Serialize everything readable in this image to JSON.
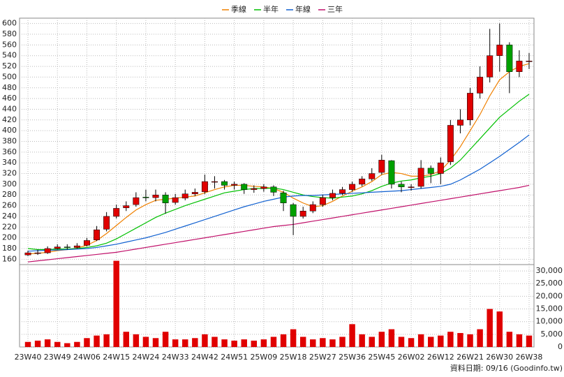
{
  "chart_data": {
    "type": "candlestick",
    "categories": [
      "23W40",
      null,
      null,
      "23W49",
      null,
      null,
      "24W06",
      null,
      null,
      "24W15",
      null,
      null,
      "24W24",
      null,
      null,
      "24W33",
      null,
      null,
      "24W42",
      null,
      null,
      "24W51",
      null,
      null,
      "25W09",
      null,
      null,
      "25W18",
      null,
      null,
      "25W27",
      null,
      null,
      "25W36",
      null,
      null,
      "25W45",
      null,
      null,
      "26W02",
      null,
      null,
      "26W12",
      null,
      null,
      "26W21",
      null,
      null,
      "26W30",
      null,
      null,
      "26W38"
    ],
    "open": [
      168,
      172,
      172,
      180,
      183,
      182,
      186,
      196,
      216,
      240,
      256,
      262,
      276,
      275,
      280,
      266,
      274,
      282,
      286,
      304,
      305,
      298,
      300,
      290,
      292,
      295,
      284,
      262,
      240,
      250,
      262,
      275,
      283,
      290,
      300,
      310,
      322,
      344,
      300,
      294,
      296,
      330,
      320,
      342,
      410,
      420,
      470,
      500,
      540,
      560,
      510,
      530
    ],
    "high": [
      176,
      178,
      184,
      188,
      188,
      190,
      200,
      222,
      248,
      262,
      268,
      285,
      290,
      290,
      285,
      282,
      290,
      292,
      318,
      315,
      308,
      305,
      302,
      298,
      300,
      298,
      288,
      265,
      258,
      268,
      280,
      290,
      295,
      305,
      315,
      330,
      355,
      345,
      305,
      300,
      345,
      335,
      350,
      420,
      440,
      480,
      520,
      590,
      600,
      565,
      550,
      545
    ],
    "low": [
      166,
      168,
      170,
      178,
      178,
      180,
      184,
      194,
      212,
      236,
      250,
      258,
      268,
      268,
      245,
      262,
      270,
      278,
      282,
      292,
      290,
      290,
      282,
      284,
      286,
      278,
      250,
      205,
      236,
      246,
      258,
      270,
      280,
      286,
      296,
      306,
      318,
      292,
      285,
      288,
      292,
      302,
      300,
      336,
      395,
      410,
      460,
      490,
      510,
      470,
      500,
      515
    ],
    "close": [
      172,
      172,
      180,
      183,
      182,
      185,
      195,
      215,
      240,
      255,
      260,
      275,
      275,
      280,
      265,
      275,
      282,
      285,
      305,
      305,
      298,
      300,
      290,
      292,
      295,
      285,
      265,
      240,
      250,
      262,
      275,
      283,
      290,
      300,
      310,
      320,
      345,
      300,
      295,
      295,
      330,
      320,
      340,
      410,
      420,
      470,
      500,
      540,
      560,
      510,
      530,
      530
    ],
    "up_color": "#e00000",
    "down_color": "#00a000",
    "ma": [
      {
        "name": "季線",
        "color": "#f08000",
        "values": [
          170,
          171,
          173,
          176,
          178,
          181,
          186,
          195,
          208,
          223,
          238,
          252,
          262,
          270,
          272,
          274,
          276,
          278,
          284,
          290,
          295,
          298,
          298,
          296,
          295,
          292,
          285,
          274,
          265,
          258,
          260,
          268,
          278,
          287,
          295,
          305,
          318,
          322,
          320,
          315,
          315,
          318,
          325,
          345,
          370,
          400,
          430,
          465,
          495,
          510,
          520,
          525
        ]
      },
      {
        "name": "半年",
        "color": "#00c000",
        "values": [
          180,
          178,
          178,
          179,
          179,
          180,
          182,
          185,
          190,
          198,
          208,
          218,
          228,
          238,
          246,
          253,
          260,
          266,
          272,
          278,
          284,
          287,
          290,
          292,
          292,
          293,
          290,
          285,
          280,
          277,
          275,
          274,
          276,
          278,
          282,
          288,
          296,
          302,
          306,
          308,
          312,
          315,
          320,
          330,
          345,
          365,
          385,
          405,
          425,
          440,
          455,
          468
        ]
      },
      {
        "name": "年線",
        "color": "#1060d0",
        "values": [
          175,
          176,
          177,
          177,
          178,
          179,
          180,
          182,
          185,
          188,
          192,
          196,
          200,
          205,
          210,
          216,
          222,
          228,
          234,
          240,
          246,
          252,
          258,
          263,
          268,
          272,
          276,
          278,
          279,
          279,
          280,
          281,
          282,
          283,
          284,
          285,
          286,
          287,
          288,
          290,
          292,
          294,
          296,
          300,
          308,
          318,
          328,
          340,
          352,
          365,
          378,
          392
        ]
      },
      {
        "name": "三年",
        "color": "#c0106a",
        "values": [
          155,
          157,
          159,
          161,
          163,
          165,
          167,
          169,
          171,
          173,
          176,
          179,
          182,
          185,
          188,
          191,
          194,
          197,
          200,
          203,
          206,
          209,
          212,
          215,
          218,
          221,
          223,
          225,
          228,
          231,
          234,
          237,
          240,
          243,
          246,
          249,
          252,
          255,
          258,
          261,
          264,
          267,
          270,
          273,
          276,
          279,
          282,
          285,
          288,
          291,
          294,
          298
        ]
      }
    ],
    "ylim": [
      150,
      610
    ],
    "yticks": [
      160,
      180,
      200,
      220,
      240,
      260,
      280,
      300,
      320,
      340,
      360,
      380,
      400,
      420,
      440,
      460,
      480,
      500,
      520,
      540,
      560,
      580,
      600
    ],
    "volume": {
      "color": "#e00000",
      "values": [
        2000,
        2500,
        3000,
        2000,
        1500,
        2000,
        3500,
        4500,
        5000,
        34000,
        6000,
        5000,
        4000,
        3500,
        6000,
        3000,
        3000,
        3500,
        5000,
        4000,
        3000,
        2500,
        3000,
        2500,
        3000,
        4000,
        5000,
        7000,
        4000,
        3000,
        3500,
        3000,
        4000,
        9000,
        5000,
        4000,
        6000,
        7000,
        4000,
        3500,
        5000,
        4000,
        4500,
        6000,
        5500,
        5000,
        7000,
        15000,
        14000,
        6000,
        5000,
        4500
      ],
      "ylim": [
        0,
        32500
      ],
      "yticks": [
        0,
        {
          "value": 5000,
          "label": "5,000"
        },
        {
          "value": 10000,
          "label": "10,000"
        },
        {
          "value": 15000,
          "label": "15,000"
        },
        {
          "value": 20000,
          "label": "20,000"
        },
        {
          "value": 25000,
          "label": "25,000"
        },
        {
          "value": 30000,
          "label": "30,000"
        }
      ]
    },
    "grid": true,
    "footer": "資料日期: 09/16 (Goodinfo.tw)"
  }
}
